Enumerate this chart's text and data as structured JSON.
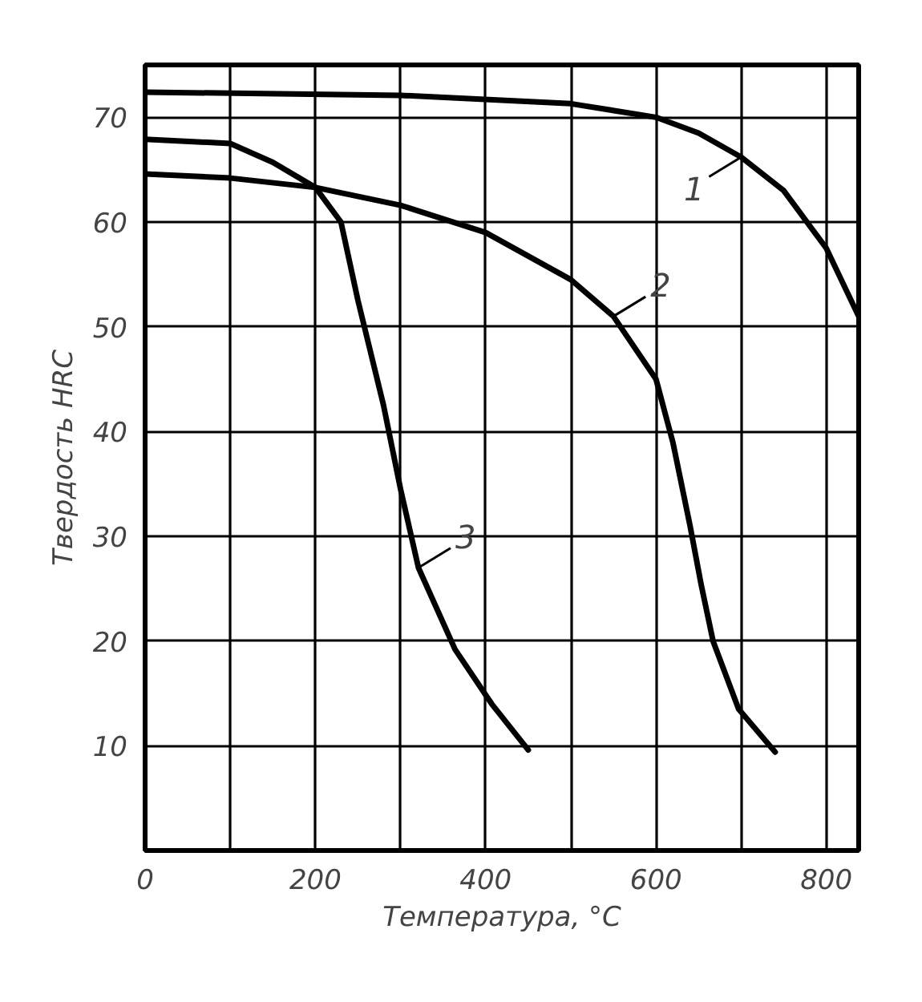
{
  "chart_data": {
    "type": "line",
    "xlabel": "Температура, °C",
    "ylabel": "Твердость HRC",
    "xlim": [
      0,
      838
    ],
    "ylim": [
      0,
      75
    ],
    "xticks": [
      0,
      {
        "value": 100,
        "label": null
      },
      200,
      {
        "value": 300,
        "label": null
      },
      400,
      {
        "value": 500,
        "label": null
      },
      600,
      {
        "value": 700,
        "label": null
      },
      800
    ],
    "yticks": [
      10,
      20,
      30,
      40,
      50,
      60,
      70
    ],
    "grid": true,
    "marker": "none",
    "line_style": "solid",
    "series": [
      {
        "color": "#000000",
        "x": [
          0,
          300,
          500,
          600,
          650,
          700,
          750,
          800,
          838
        ],
        "values": [
          72.4,
          72.1,
          71.3,
          70,
          68.5,
          66.2,
          63,
          57.5,
          51
        ]
      },
      {
        "color": "#000000",
        "x": [
          0,
          100,
          200,
          300,
          400,
          500,
          550,
          600,
          620,
          640,
          653,
          667,
          697,
          740
        ],
        "values": [
          64.6,
          64.2,
          63.3,
          61.6,
          59,
          54.5,
          51,
          45,
          38.9,
          31,
          25.4,
          20,
          13.5,
          9.4
        ]
      },
      {
        "color": "#000000",
        "x": [
          0,
          100,
          150,
          200,
          230,
          250,
          280,
          300,
          321,
          364,
          407,
          450
        ],
        "values": [
          67.9,
          67.5,
          65.7,
          63.3,
          60,
          52.5,
          42.5,
          34.5,
          27,
          19.2,
          14,
          9.6
        ]
      }
    ],
    "annotations": [
      {
        "text": "1",
        "x": 700,
        "y": 66.2
      },
      {
        "text": "2",
        "x": 550,
        "y": 51
      },
      {
        "text": "3",
        "x": 321,
        "y": 27
      }
    ]
  }
}
